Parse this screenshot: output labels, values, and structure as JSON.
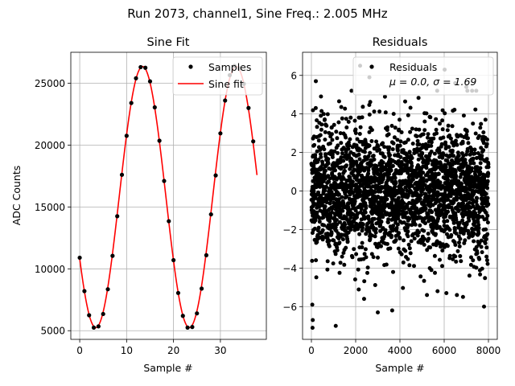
{
  "figure": {
    "suptitle": "Run 2073, channel1, Sine Freq.: 2.005 MHz"
  },
  "chart_data": [
    {
      "type": "line",
      "title": "Sine Fit",
      "xlabel": "Sample #",
      "ylabel": "ADC Counts",
      "xlim": [
        -1.9,
        39.8
      ],
      "ylim": [
        4300,
        27500
      ],
      "x_ticks": [
        0,
        10,
        20,
        30
      ],
      "y_ticks": [
        5000,
        10000,
        15000,
        20000,
        25000
      ],
      "grid": true,
      "legend": {
        "placement": "upper right",
        "entries": [
          "Samples",
          "Sine fit"
        ]
      },
      "series": [
        {
          "name": "Samples",
          "style": "markers",
          "color": "#000000",
          "x": [
            0,
            1,
            2,
            3,
            4,
            5,
            6,
            7,
            8,
            9,
            10,
            11,
            12,
            13,
            14,
            15,
            16,
            17,
            18,
            19,
            20,
            21,
            22,
            23,
            24,
            25,
            26,
            27,
            28,
            29,
            30,
            31,
            32,
            33,
            34,
            35,
            36,
            37
          ],
          "y": [
            10900,
            8200,
            6250,
            5250,
            5350,
            6350,
            8350,
            11050,
            14250,
            17600,
            20750,
            23400,
            25400,
            26300,
            26250,
            25150,
            23050,
            20350,
            17100,
            13850,
            10700,
            8050,
            6200,
            5250,
            5300,
            6400,
            8400,
            11100,
            14400,
            17550,
            20950,
            23600,
            25650,
            26400,
            26200,
            24950,
            23000,
            20300
          ]
        },
        {
          "name": "Sine fit",
          "style": "line",
          "color": "#ff0000",
          "model": {
            "offset": 15800,
            "amplitude": 10550,
            "period_samples": 19.95,
            "phase_sample_peak": 13.4
          },
          "x_range": [
            0,
            37.8
          ]
        }
      ]
    },
    {
      "type": "scatter",
      "title": "Residuals",
      "xlabel": "Sample #",
      "ylabel": "",
      "xlim": [
        -400,
        8400
      ],
      "ylim": [
        -7.7,
        7.2
      ],
      "x_ticks": [
        0,
        2000,
        4000,
        6000,
        8000
      ],
      "y_ticks": [
        -6,
        -4,
        -2,
        0,
        2,
        4,
        6
      ],
      "grid": true,
      "legend": {
        "placement": "upper right",
        "entries": [
          "Residuals",
          "μ = 0.0, σ = 1.69"
        ]
      },
      "series": [
        {
          "name": "Residuals",
          "color": "#000000",
          "n_points": 8000,
          "mean": 0.0,
          "std": 1.69,
          "x_range": [
            0,
            7999
          ],
          "outliers": [
            {
              "x": 50,
              "y": -7.1
            },
            {
              "x": 60,
              "y": -6.7
            },
            {
              "x": 40,
              "y": -5.9
            },
            {
              "x": 1100,
              "y": -7.0
            },
            {
              "x": 3650,
              "y": -6.2
            },
            {
              "x": 7800,
              "y": -6.0
            },
            {
              "x": 2380,
              "y": -5.6
            },
            {
              "x": 200,
              "y": 5.7
            },
            {
              "x": 2200,
              "y": 6.5
            },
            {
              "x": 2620,
              "y": 5.9
            },
            {
              "x": 3000,
              "y": -6.3
            },
            {
              "x": 5700,
              "y": -5.2
            },
            {
              "x": 6500,
              "y": 5.6
            },
            {
              "x": 7450,
              "y": 5.2
            },
            {
              "x": 6850,
              "y": -5.5
            },
            {
              "x": 6020,
              "y": 6.3
            },
            {
              "x": 7000,
              "y": 5.4
            },
            {
              "x": 6100,
              "y": -5.3
            }
          ]
        }
      ]
    }
  ]
}
